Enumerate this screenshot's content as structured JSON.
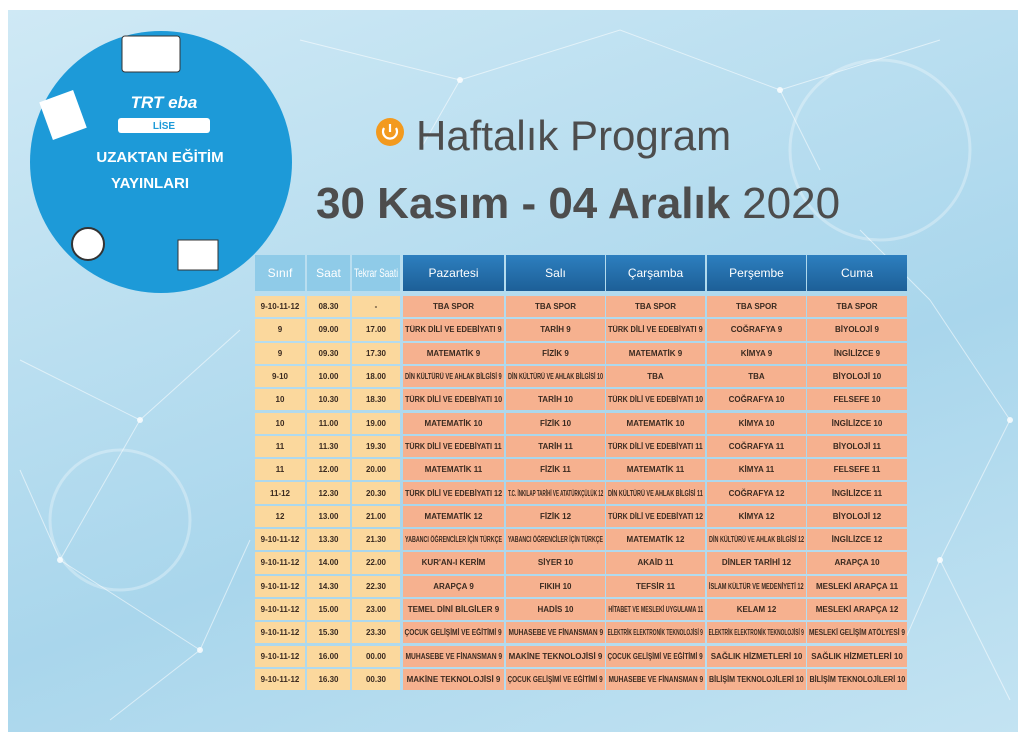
{
  "logo": {
    "brand": "TRT eba",
    "level": "LİSE",
    "line1": "UZAKTAN EĞİTİM",
    "line2": "YAYINLARI"
  },
  "header": {
    "title": "Haftalık Program",
    "dates": "30 Kasım - 04 Aralık",
    "year": "2020"
  },
  "table": {
    "columns": [
      "Sınıf",
      "Saat",
      "Tekrar Saati",
      "Pazartesi",
      "Salı",
      "Çarşamba",
      "Perşembe",
      "Cuma"
    ],
    "rows": [
      [
        "9-10-11-12",
        "08.30",
        "-",
        "TBA SPOR",
        "TBA SPOR",
        "TBA SPOR",
        "TBA SPOR",
        "TBA SPOR"
      ],
      [
        "9",
        "09.00",
        "17.00",
        "TÜRK DİLİ VE EDEBİYATI 9",
        "TARİH 9",
        "TÜRK DİLİ VE EDEBİYATI 9",
        "COĞRAFYA 9",
        "BİYOLOJİ 9"
      ],
      [
        "9",
        "09.30",
        "17.30",
        "MATEMATİK 9",
        "FİZİK 9",
        "MATEMATİK 9",
        "KİMYA 9",
        "İNGİLİZCE 9"
      ],
      [
        "9-10",
        "10.00",
        "18.00",
        "DİN KÜLTÜRÜ VE AHLAK BİLGİSİ 9",
        "DİN KÜLTÜRÜ VE AHLAK BİLGİSİ 10",
        "TBA",
        "TBA",
        "BİYOLOJİ 10"
      ],
      [
        "10",
        "10.30",
        "18.30",
        "TÜRK DİLİ VE EDEBİYATI 10",
        "TARİH 10",
        "TÜRK DİLİ VE EDEBİYATI 10",
        "COĞRAFYA 10",
        "FELSEFE 10"
      ],
      [
        "10",
        "11.00",
        "19.00",
        "MATEMATİK 10",
        "FİZİK 10",
        "MATEMATİK 10",
        "KİMYA 10",
        "İNGİLİZCE 10"
      ],
      [
        "11",
        "11.30",
        "19.30",
        "TÜRK DİLİ VE EDEBİYATI 11",
        "TARİH 11",
        "TÜRK DİLİ VE EDEBİYATI 11",
        "COĞRAFYA 11",
        "BİYOLOJİ 11"
      ],
      [
        "11",
        "12.00",
        "20.00",
        "MATEMATİK 11",
        "FİZİK 11",
        "MATEMATİK 11",
        "KİMYA 11",
        "FELSEFE 11"
      ],
      [
        "11-12",
        "12.30",
        "20.30",
        "TÜRK DİLİ VE EDEBİYATI 12",
        "T.C. İNKILAP TARİHİ VE ATATÜRKÇÜLÜK 12",
        "DİN KÜLTÜRÜ VE AHLAK BİLGİSİ 11",
        "COĞRAFYA 12",
        "İNGİLİZCE 11"
      ],
      [
        "12",
        "13.00",
        "21.00",
        "MATEMATİK 12",
        "FİZİK 12",
        "TÜRK DİLİ VE EDEBİYATI 12",
        "KİMYA 12",
        "BİYOLOJİ 12"
      ],
      [
        "9-10-11-12",
        "13.30",
        "21.30",
        "YABANCI ÖĞRENCİLER İÇİN TÜRKÇE",
        "YABANCI ÖĞRENCİLER İÇİN TÜRKÇE",
        "MATEMATİK 12",
        "DİN KÜLTÜRÜ VE AHLAK BİLGİSİ 12",
        "İNGİLİZCE 12"
      ],
      [
        "9-10-11-12",
        "14.00",
        "22.00",
        "KUR'AN-I KERİM",
        "SİYER 10",
        "AKAİD 11",
        "DİNLER TARİHİ 12",
        "ARAPÇA 10"
      ],
      [
        "9-10-11-12",
        "14.30",
        "22.30",
        "ARAPÇA 9",
        "FIKIH 10",
        "TEFSİR 11",
        "İSLAM KÜLTÜR VE MEDENİYETİ 12",
        "MESLEKİ ARAPÇA 11"
      ],
      [
        "9-10-11-12",
        "15.00",
        "23.00",
        "TEMEL DİNİ BİLGİLER 9",
        "HADİS 10",
        "HİTABET VE MESLEKİ UYGULAMA 11",
        "KELAM 12",
        "MESLEKİ ARAPÇA 12"
      ],
      [
        "9-10-11-12",
        "15.30",
        "23.30",
        "ÇOCUK GELİŞİMİ VE EĞİTİMİ 9",
        "MUHASEBE VE FİNANSMAN 9",
        "ELEKTRİK ELEKTRONİK TEKNOLOJİSİ 9",
        "ELEKTRİK ELEKTRONİK TEKNOLOJİSİ 9",
        "MESLEKİ GELİŞİM ATÖLYESİ 9"
      ],
      [
        "9-10-11-12",
        "16.00",
        "00.00",
        "MUHASEBE VE FİNANSMAN 9",
        "MAKİNE TEKNOLOJİSİ 9",
        "ÇOCUK GELİŞİMİ VE EĞİTİMİ 9",
        "SAĞLIK HİZMETLERİ 10",
        "SAĞLIK HİZMETLERİ 10"
      ],
      [
        "9-10-11-12",
        "16.30",
        "00.30",
        "MAKİNE TEKNOLOJİSİ 9",
        "ÇOCUK GELİŞİMİ VE EĞİTİMİ 9",
        "MUHASEBE VE FİNANSMAN 9",
        "BİLİŞİM TEKNOLOJİLERİ 10",
        "BİLİŞİM TEKNOLOJİLERİ 10"
      ]
    ]
  }
}
